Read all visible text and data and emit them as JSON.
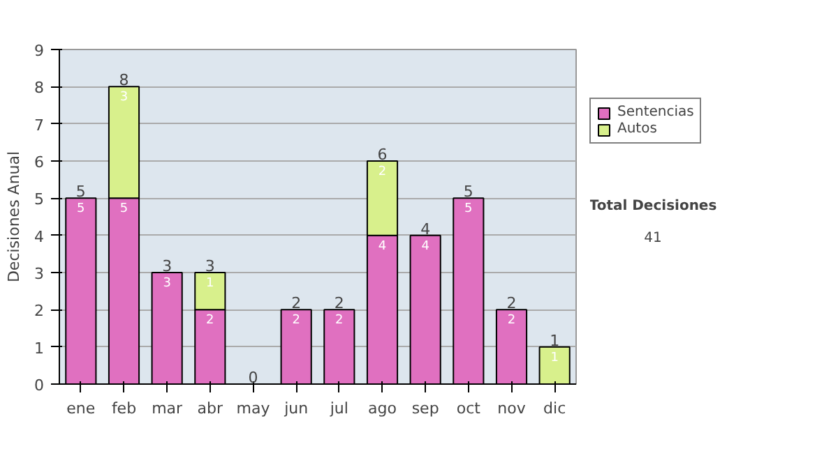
{
  "chart_data": {
    "type": "bar",
    "stacked": true,
    "ylabel": "Decisiones Anual",
    "categories": [
      "ene",
      "feb",
      "mar",
      "abr",
      "may",
      "jun",
      "jul",
      "ago",
      "sep",
      "oct",
      "nov",
      "dic"
    ],
    "series": [
      {
        "name": "Sentencias",
        "color": "#e070c0",
        "values": [
          5,
          5,
          3,
          2,
          0,
          2,
          2,
          4,
          4,
          5,
          2,
          0
        ],
        "value_labels": [
          "5",
          "5",
          "3",
          "2",
          null,
          "2",
          "2",
          "4",
          "4",
          "5",
          "2",
          null
        ]
      },
      {
        "name": "Autos",
        "color": "#d8f08c",
        "values": [
          0,
          3,
          0,
          1,
          0,
          0,
          0,
          2,
          0,
          0,
          0,
          1
        ],
        "value_labels": [
          null,
          "3",
          null,
          "1",
          null,
          null,
          null,
          "2",
          null,
          null,
          null,
          "1"
        ]
      }
    ],
    "totals": [
      "5",
      "8",
      "3",
      "3",
      "0",
      "2",
      "2",
      "6",
      "4",
      "5",
      "2",
      "1"
    ],
    "ylim": [
      0,
      9
    ],
    "yticks": [
      0,
      1,
      2,
      3,
      4,
      5,
      6,
      7,
      8,
      9
    ],
    "grid": "y",
    "legend": "right",
    "annotations": [
      "Total Decisiones",
      "41"
    ]
  }
}
